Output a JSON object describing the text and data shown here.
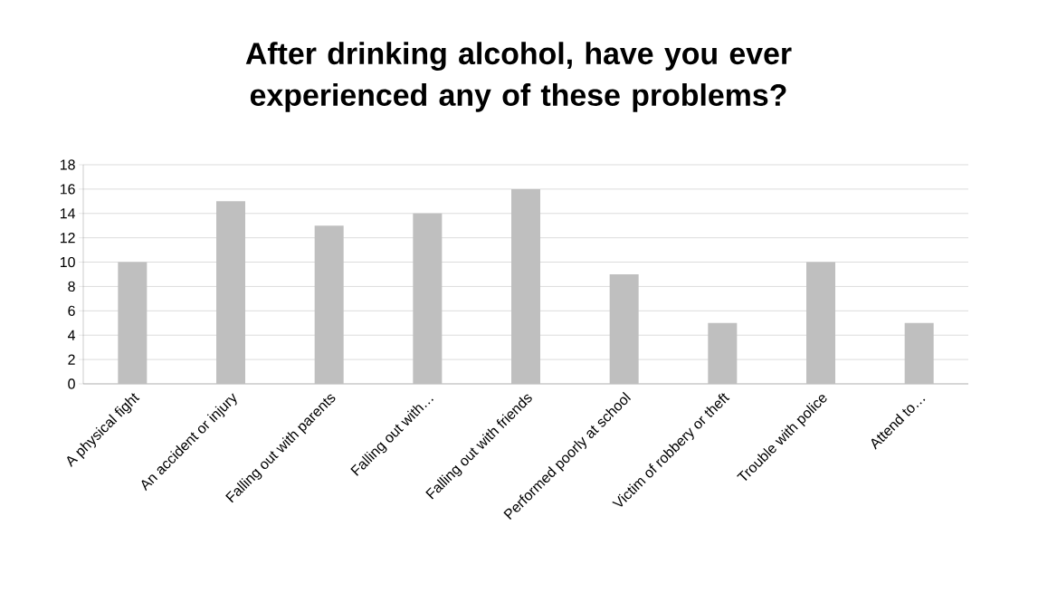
{
  "chart_data": {
    "type": "bar",
    "title": "After drinking alcohol, have you ever experienced any of these problems?",
    "categories": [
      "A physical fight",
      "An accident or injury",
      "Falling out with parents",
      "Falling out with…",
      "Falling out with friends",
      "Performed poorly at school",
      "Victim of robbery or theft",
      "Trouble with police",
      "Attend to…"
    ],
    "values": [
      10,
      15,
      13,
      14,
      16,
      9,
      5,
      10,
      5
    ],
    "color": "#bfbfbf",
    "ylim": [
      0,
      18
    ],
    "yticks": [
      0,
      2,
      4,
      6,
      8,
      10,
      12,
      14,
      16,
      18
    ],
    "grid": "y"
  }
}
